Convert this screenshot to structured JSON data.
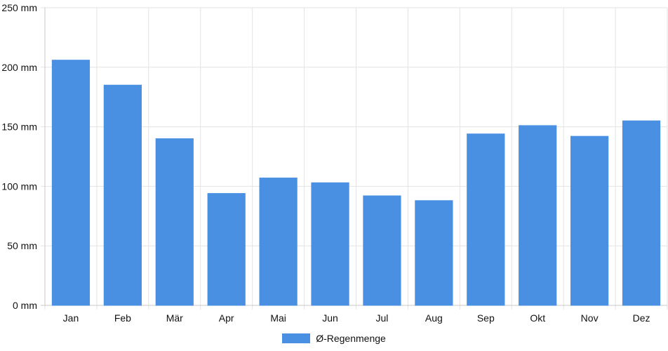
{
  "chart_data": {
    "type": "bar",
    "categories": [
      "Jan",
      "Feb",
      "Mär",
      "Apr",
      "Mai",
      "Jun",
      "Jul",
      "Aug",
      "Sep",
      "Okt",
      "Nov",
      "Dez"
    ],
    "series": [
      {
        "name": "Ø-Regenmenge",
        "values": [
          206,
          185,
          140,
          94,
          107,
          103,
          92,
          88,
          144,
          151,
          142,
          155
        ],
        "color": "#4a90e2"
      }
    ],
    "y_ticks": [
      "0 mm",
      "50 mm",
      "100 mm",
      "150 mm",
      "200 mm",
      "250 mm"
    ],
    "ylim": [
      0,
      250
    ],
    "y_unit": "mm",
    "grid": true,
    "legend_position": "bottom-center"
  }
}
